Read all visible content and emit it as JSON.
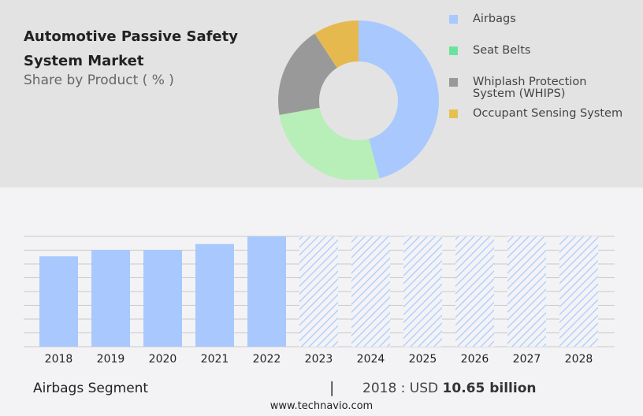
{
  "title": "Automotive Passive Safety System Market",
  "subtitle": "Share by Product ( % )",
  "chart_data": [
    {
      "type": "pie",
      "variant": "donut",
      "slices": [
        {
          "name": "Airbags",
          "value": 45.8,
          "color": "#a8c8fe"
        },
        {
          "name": "Seat Belts",
          "value": 26.4,
          "color": "#b8eeb8"
        },
        {
          "name": "Whiplash Protection System (WHIPS)",
          "value": 18.6,
          "color": "#999999"
        },
        {
          "name": "Occupant Sensing System",
          "value": 9.2,
          "color": "#e6b94f"
        }
      ],
      "legend_colors": [
        "#a8c8fe",
        "#6ce39a",
        "#999999",
        "#e6c04f"
      ],
      "legend": "right"
    },
    {
      "type": "bar",
      "categories": [
        "2018",
        "2019",
        "2020",
        "2021",
        "2022",
        "2023",
        "2024",
        "2025",
        "2026",
        "2027",
        "2028"
      ],
      "values": [
        10.65,
        11.4,
        11.4,
        12.1,
        13.0,
        null,
        null,
        null,
        null,
        null,
        null
      ],
      "forecast": [
        false,
        false,
        false,
        false,
        false,
        true,
        true,
        true,
        true,
        true,
        true
      ],
      "units": "USD billion",
      "color": "#a8c8fe",
      "grid": true,
      "ylim": [
        0,
        13.0
      ]
    }
  ],
  "footer": {
    "segment": "Airbags Segment",
    "separator": "|",
    "value_prefix": "2018 : USD",
    "value_bold": "10.65 billion",
    "url": "www.technavio.com"
  }
}
